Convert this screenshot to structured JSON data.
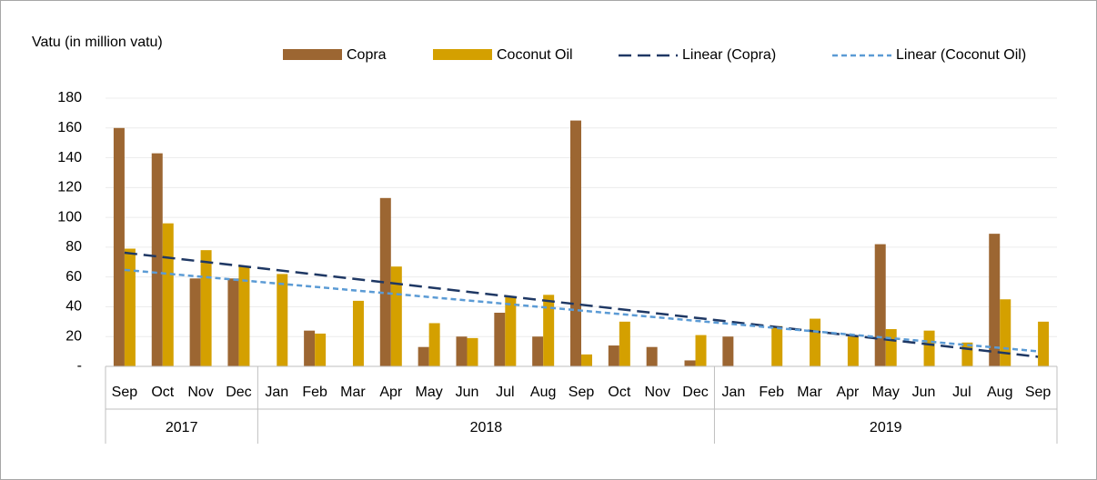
{
  "chart_data": {
    "type": "bar",
    "y_axis_label": "Vatu (in million vatu)",
    "categories": [
      "Sep",
      "Oct",
      "Nov",
      "Dec",
      "Jan",
      "Feb",
      "Mar",
      "Apr",
      "May",
      "Jun",
      "Jul",
      "Aug",
      "Sep",
      "Oct",
      "Nov",
      "Dec",
      "Jan",
      "Feb",
      "Mar",
      "Apr",
      "May",
      "Jun",
      "Jul",
      "Aug",
      "Sep"
    ],
    "groups": [
      {
        "label": "2017",
        "span": 4
      },
      {
        "label": "2018",
        "span": 12
      },
      {
        "label": "2019",
        "span": 9
      }
    ],
    "series": [
      {
        "name": "Copra",
        "color": "#9c6632",
        "values": [
          160,
          143,
          59,
          59,
          0,
          24,
          0,
          113,
          13,
          20,
          36,
          20,
          165,
          14,
          13,
          4,
          20,
          0,
          0,
          0,
          82,
          0,
          0,
          89,
          0
        ],
        "trendline": {
          "name": "Linear (Copra)",
          "color": "#1f3864"
        }
      },
      {
        "name": "Coconut Oil",
        "color": "#d4a000",
        "values": [
          79,
          96,
          78,
          67,
          62,
          22,
          44,
          67,
          29,
          19,
          47,
          48,
          8,
          30,
          0,
          21,
          0,
          27,
          32,
          20,
          25,
          24,
          16,
          45,
          30
        ],
        "trendline": {
          "name": "Linear (Coconut Oil)",
          "color": "#5b9bd5"
        }
      }
    ],
    "ylim": [
      0,
      180
    ],
    "yticks": [
      {
        "value": 0,
        "label": "-"
      },
      20,
      40,
      60,
      80,
      100,
      120,
      140,
      160,
      180
    ],
    "grid": true
  }
}
